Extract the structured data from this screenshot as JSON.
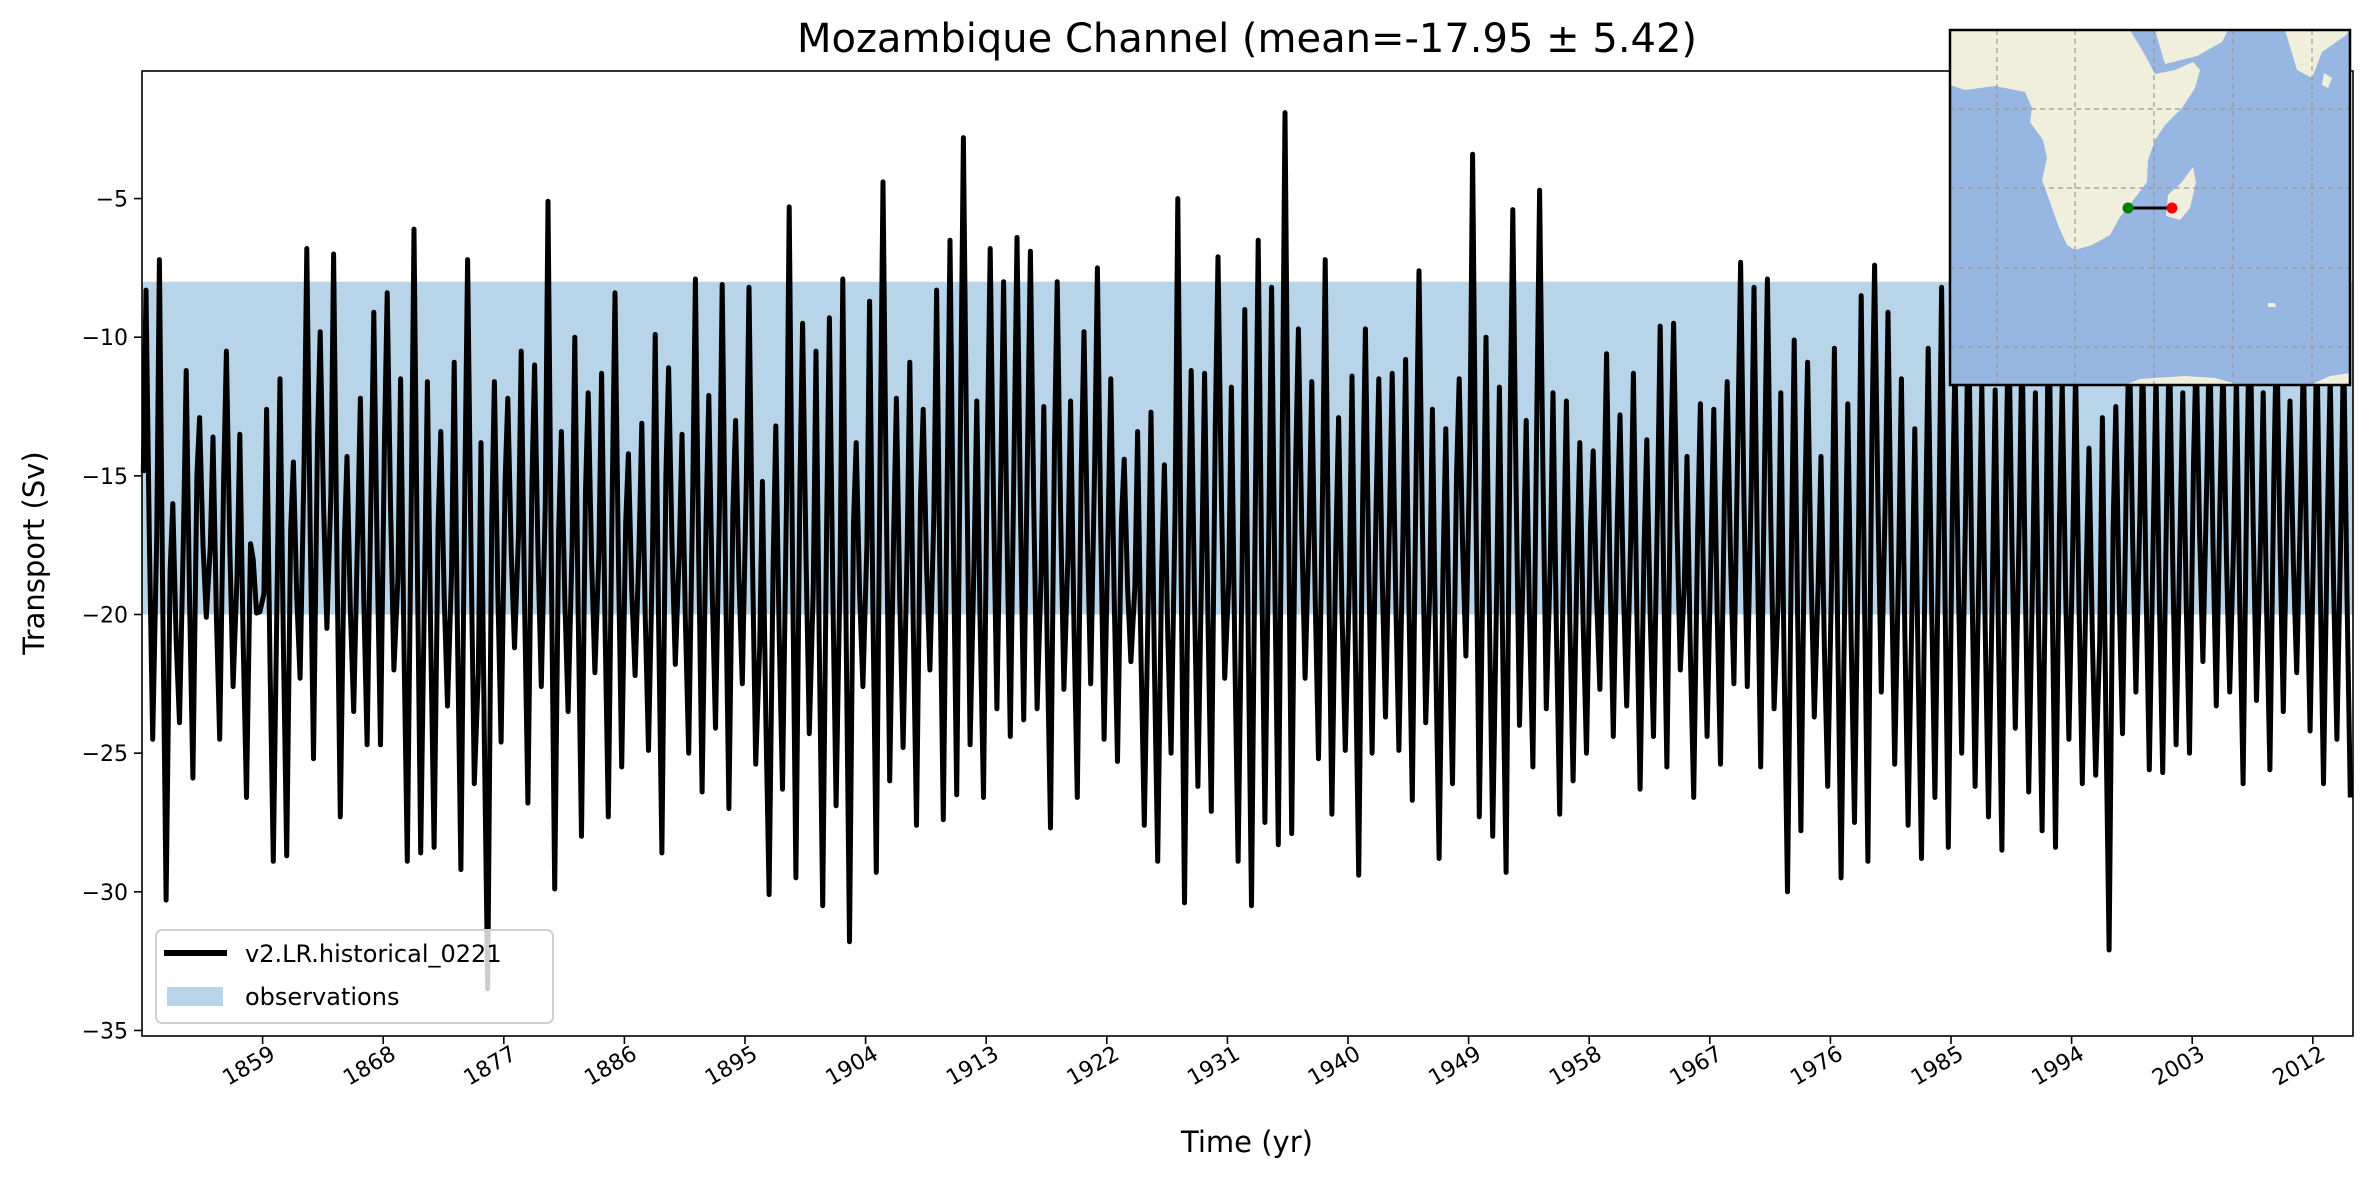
{
  "chart_data": {
    "type": "line",
    "title": "Mozambique Channel (mean=-17.95 ± 5.42)",
    "xlabel": "Time (yr)",
    "ylabel": "Transport (Sv)",
    "xlim": [
      1850,
      2015
    ],
    "ylim": [
      -35.2,
      -0.4
    ],
    "xticks": [
      1859,
      1868,
      1877,
      1886,
      1895,
      1904,
      1913,
      1922,
      1931,
      1940,
      1949,
      1958,
      1967,
      1976,
      1985,
      1994,
      2003,
      2012
    ],
    "yticks": [
      -5,
      -10,
      -15,
      -20,
      -25,
      -30,
      -35
    ],
    "grid": false,
    "legend_position": "lower-left",
    "observations": {
      "label": "observations",
      "range": [
        -20,
        -8
      ],
      "color": "#b8d4e8"
    },
    "series": [
      {
        "name": "v2.LR.historical_0221",
        "color": "#000000",
        "start_year": 1850,
        "note_values": "approximate annual maxima (peaks) and minima (troughs)",
        "peaks": [
          -8.3,
          -7.2,
          -16,
          -11.2,
          -12.9,
          -13.6,
          -10.5,
          -13.5,
          -18,
          -12.6,
          -11.5,
          -14.5,
          -6.8,
          -9.8,
          -7.0,
          -14.3,
          -12.2,
          -9.1,
          -8.4,
          -11.5,
          -6.1,
          -11.6,
          -13.4,
          -10.9,
          -7.2,
          -13.8,
          -11.6,
          -12.2,
          -10.5,
          -11.0,
          -5.1,
          -13.4,
          -10.0,
          -12.0,
          -11.3,
          -8.4,
          -14.2,
          -13.1,
          -9.9,
          -11.1,
          -13.5,
          -7.9,
          -12.1,
          -8.1,
          -13.0,
          -8.2,
          -15.2,
          -13.2,
          -5.3,
          -9.5,
          -10.5,
          -9.3,
          -7.9,
          -13.8,
          -8.7,
          -4.4,
          -12.2,
          -10.9,
          -12.6,
          -8.3,
          -6.5,
          -2.8,
          -12.3,
          -6.8,
          -8.0,
          -6.4,
          -6.9,
          -12.5,
          -8.0,
          -12.3,
          -9.8,
          -7.5,
          -11.5,
          -14.4,
          -13.4,
          -12.7,
          -14.6,
          -5.0,
          -11.2,
          -11.3,
          -7.1,
          -11.8,
          -9.0,
          -6.5,
          -8.2,
          -1.9,
          -9.7,
          -11.6,
          -7.2,
          -12.9,
          -11.4,
          -9.7,
          -11.5,
          -11.3,
          -10.8,
          -7.6,
          -12.6,
          -13.3,
          -11.5,
          -3.4,
          -10.0,
          -11.8,
          -5.4,
          -13.0,
          -4.7,
          -12.0,
          -12.3,
          -13.8,
          -14.1,
          -10.6,
          -12.8,
          -11.3,
          -13.7,
          -9.6,
          -9.5,
          -14.3,
          -12.4,
          -12.6,
          -11.6,
          -7.3,
          -8.2,
          -7.9,
          -12.0,
          -10.1,
          -10.9,
          -14.3,
          -10.4,
          -12.4,
          -8.5,
          -7.4,
          -9.1,
          -11.5,
          -13.3,
          -10.4,
          -8.2,
          -10.9,
          -8.6,
          -11.7,
          -11.9,
          -9.0,
          -9.9,
          -12.0,
          -8.2,
          -11.7,
          -11.2,
          -14.0,
          -12.9,
          -12.5,
          -9.6,
          -10.2,
          -11.3,
          -9.8,
          -12.0,
          -10.4,
          -9.6,
          -10.9,
          -11.4,
          -8.5,
          -12.0,
          -9.4,
          -12.3,
          -10.6,
          -9.7,
          -11.4,
          -10.0
        ],
        "troughs": [
          -24.5,
          -30.3,
          -23.9,
          -25.9,
          -20.1,
          -24.5,
          -22.6,
          -26.6,
          -19.9,
          -28.9,
          -28.7,
          -22.3,
          -25.2,
          -20.5,
          -27.3,
          -23.5,
          -24.7,
          -24.7,
          -22.0,
          -28.9,
          -28.6,
          -28.4,
          -23.3,
          -29.2,
          -26.1,
          -33.5,
          -24.6,
          -21.2,
          -26.8,
          -22.6,
          -29.9,
          -23.5,
          -28.0,
          -22.1,
          -27.3,
          -25.5,
          -22.2,
          -24.9,
          -28.6,
          -21.8,
          -25.0,
          -26.4,
          -24.1,
          -27.0,
          -22.5,
          -25.4,
          -30.1,
          -26.3,
          -29.5,
          -24.3,
          -30.5,
          -26.9,
          -31.8,
          -22.6,
          -29.3,
          -26.0,
          -24.8,
          -27.6,
          -22.0,
          -27.4,
          -26.5,
          -24.7,
          -26.6,
          -23.4,
          -24.4,
          -23.8,
          -23.4,
          -27.7,
          -22.7,
          -26.6,
          -22.5,
          -24.5,
          -25.3,
          -21.7,
          -27.6,
          -28.9,
          -25.0,
          -30.4,
          -26.2,
          -27.1,
          -22.3,
          -28.9,
          -30.5,
          -27.5,
          -28.3,
          -27.9,
          -22.3,
          -25.2,
          -27.2,
          -24.9,
          -29.4,
          -25.0,
          -23.7,
          -24.9,
          -26.7,
          -23.9,
          -28.8,
          -26.1,
          -21.5,
          -27.3,
          -28.0,
          -29.3,
          -24.0,
          -25.5,
          -23.4,
          -27.2,
          -26.0,
          -25.0,
          -22.7,
          -24.4,
          -23.3,
          -26.3,
          -24.4,
          -25.5,
          -22.0,
          -26.6,
          -24.4,
          -25.4,
          -22.5,
          -22.6,
          -25.5,
          -23.4,
          -30.0,
          -27.8,
          -23.7,
          -26.2,
          -29.5,
          -27.5,
          -28.9,
          -22.8,
          -25.4,
          -27.6,
          -28.8,
          -26.6,
          -28.4,
          -25.0,
          -26.2,
          -27.3,
          -28.5,
          -24.1,
          -26.4,
          -27.8,
          -28.4,
          -24.5,
          -26.1,
          -25.8,
          -32.1,
          -24.3,
          -22.8,
          -25.6,
          -25.7,
          -24.7,
          -25.0,
          -21.7,
          -23.3,
          -22.8,
          -26.1,
          -23.1,
          -25.6,
          -23.5,
          -22.1,
          -24.2,
          -26.1,
          -24.5,
          -26.6
        ]
      }
    ],
    "inset_map": {
      "section": "Mozambique Channel",
      "start_marker_color": "#008000",
      "end_marker_color": "#ff0000",
      "ocean_color": "#97b6e1",
      "land_color": "#efefdb"
    }
  }
}
